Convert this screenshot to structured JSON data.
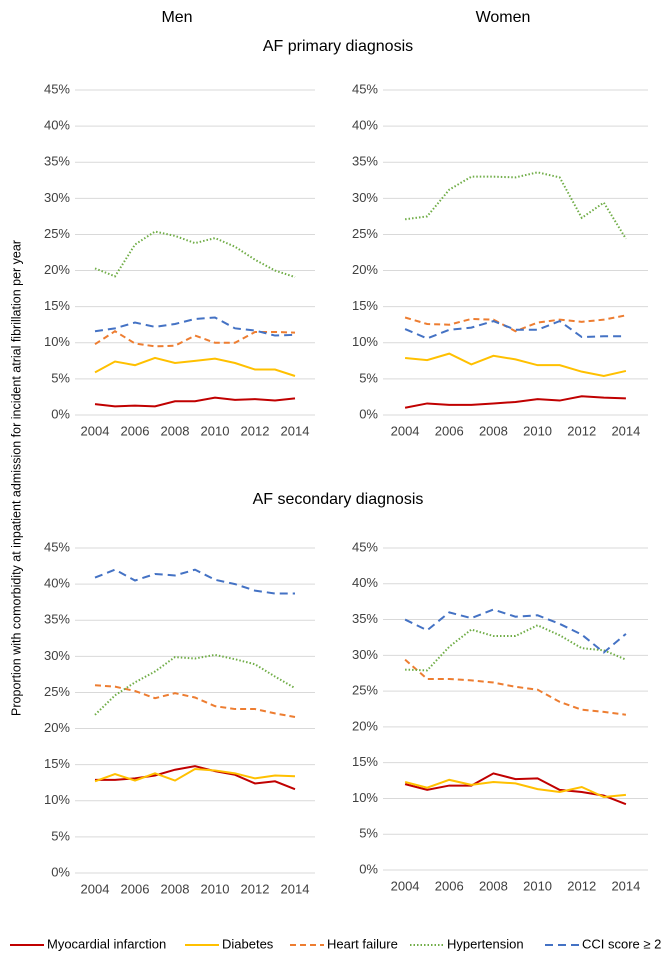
{
  "column_titles": [
    "Men",
    "Women"
  ],
  "row_titles": [
    "AF primary diagnosis",
    "AF secondary diagnosis"
  ],
  "y_label": "Proportion with comorbidity at inpatient admission for incident atrial fibrillation per year",
  "chart_data": [
    {
      "type": "line",
      "grid": true,
      "x": [
        2004,
        2005,
        2006,
        2007,
        2008,
        2009,
        2010,
        2011,
        2012,
        2013,
        2014
      ],
      "xlim": [
        2003,
        2015
      ],
      "xticks": [
        2004,
        2006,
        2008,
        2010,
        2012,
        2014
      ],
      "ylim": [
        0,
        45
      ],
      "yticks": [
        {
          "value": 0,
          "label": "0%"
        },
        {
          "value": 5,
          "label": "5%"
        },
        {
          "value": 10,
          "label": "10%"
        },
        {
          "value": 15,
          "label": "15%"
        },
        {
          "value": 20,
          "label": "20%"
        },
        {
          "value": 25,
          "label": "25%"
        },
        {
          "value": 30,
          "label": "30%"
        },
        {
          "value": 35,
          "label": "35%"
        },
        {
          "value": 40,
          "label": "40%"
        },
        {
          "value": 45,
          "label": "45%"
        }
      ],
      "series": [
        {
          "name": "Myocardial infarction",
          "color": "#c00000",
          "line_style": "solid",
          "values": [
            1.5,
            1.2,
            1.3,
            1.2,
            1.9,
            1.9,
            2.4,
            2.1,
            2.2,
            2.0,
            2.3
          ]
        },
        {
          "name": "Diabetes",
          "color": "#ffc000",
          "line_style": "solid",
          "values": [
            5.9,
            7.4,
            6.9,
            7.9,
            7.2,
            7.5,
            7.8,
            7.2,
            6.3,
            6.3,
            5.4
          ]
        },
        {
          "name": "Heart failure",
          "color": "#ed7d31",
          "line_style": "dashed",
          "values": [
            9.8,
            11.6,
            9.9,
            9.5,
            9.6,
            11.0,
            10.0,
            10.0,
            11.5,
            11.5,
            11.4
          ]
        },
        {
          "name": "Hypertension",
          "color": "#70ad47",
          "line_style": "dotted",
          "values": [
            20.3,
            19.2,
            23.6,
            25.4,
            24.8,
            23.8,
            24.5,
            23.3,
            21.5,
            20.0,
            19.1
          ]
        },
        {
          "name": "CCI score ≥ 2",
          "color": "#4472c4",
          "line_style": "long-dashed",
          "values": [
            11.6,
            12.0,
            12.8,
            12.2,
            12.6,
            13.3,
            13.5,
            12.0,
            11.7,
            11.0,
            11.1
          ]
        }
      ]
    },
    {
      "type": "line",
      "grid": true,
      "x": [
        2004,
        2005,
        2006,
        2007,
        2008,
        2009,
        2010,
        2011,
        2012,
        2013,
        2014
      ],
      "xlim": [
        2003,
        2015
      ],
      "xticks": [
        2004,
        2006,
        2008,
        2010,
        2012,
        2014
      ],
      "ylim": [
        0,
        45
      ],
      "yticks": [
        {
          "value": 0,
          "label": "0%"
        },
        {
          "value": 5,
          "label": "5%"
        },
        {
          "value": 10,
          "label": "10%"
        },
        {
          "value": 15,
          "label": "15%"
        },
        {
          "value": 20,
          "label": "20%"
        },
        {
          "value": 25,
          "label": "25%"
        },
        {
          "value": 30,
          "label": "30%"
        },
        {
          "value": 35,
          "label": "35%"
        },
        {
          "value": 40,
          "label": "40%"
        },
        {
          "value": 45,
          "label": "45%"
        }
      ],
      "series": [
        {
          "name": "Myocardial infarction",
          "color": "#c00000",
          "line_style": "solid",
          "values": [
            1.0,
            1.6,
            1.4,
            1.4,
            1.6,
            1.8,
            2.2,
            2.0,
            2.6,
            2.4,
            2.3
          ]
        },
        {
          "name": "Diabetes",
          "color": "#ffc000",
          "line_style": "solid",
          "values": [
            7.9,
            7.6,
            8.5,
            7.0,
            8.2,
            7.7,
            6.9,
            6.9,
            6.0,
            5.4,
            6.1
          ]
        },
        {
          "name": "Heart failure",
          "color": "#ed7d31",
          "line_style": "dashed",
          "values": [
            13.5,
            12.6,
            12.5,
            13.3,
            13.2,
            11.6,
            12.8,
            13.2,
            12.9,
            13.2,
            13.8
          ]
        },
        {
          "name": "Hypertension",
          "color": "#70ad47",
          "line_style": "dotted",
          "values": [
            27.1,
            27.5,
            31.2,
            33.0,
            33.0,
            32.9,
            33.6,
            32.9,
            27.3,
            29.4,
            24.4
          ]
        },
        {
          "name": "CCI score ≥ 2",
          "color": "#4472c4",
          "line_style": "long-dashed",
          "values": [
            11.9,
            10.6,
            11.8,
            12.1,
            13.0,
            11.8,
            11.8,
            13.0,
            10.8,
            10.9,
            10.9
          ]
        }
      ]
    },
    {
      "type": "line",
      "grid": true,
      "x": [
        2004,
        2005,
        2006,
        2007,
        2008,
        2009,
        2010,
        2011,
        2012,
        2013,
        2014
      ],
      "xlim": [
        2003,
        2015
      ],
      "xticks": [
        2004,
        2006,
        2008,
        2010,
        2012,
        2014
      ],
      "ylim": [
        0,
        45
      ],
      "yticks": [
        {
          "value": 0,
          "label": "0%"
        },
        {
          "value": 5,
          "label": "5%"
        },
        {
          "value": 10,
          "label": "10%"
        },
        {
          "value": 15,
          "label": "15%"
        },
        {
          "value": 20,
          "label": "20%"
        },
        {
          "value": 25,
          "label": "25%"
        },
        {
          "value": 30,
          "label": "30%"
        },
        {
          "value": 35,
          "label": "35%"
        },
        {
          "value": 40,
          "label": "40%"
        },
        {
          "value": 45,
          "label": "45%"
        }
      ],
      "series": [
        {
          "name": "Myocardial infarction",
          "color": "#c00000",
          "line_style": "solid",
          "values": [
            12.9,
            12.9,
            13.1,
            13.5,
            14.3,
            14.8,
            14.1,
            13.6,
            12.4,
            12.7,
            11.6
          ]
        },
        {
          "name": "Diabetes",
          "color": "#ffc000",
          "line_style": "solid",
          "values": [
            12.7,
            13.7,
            12.8,
            13.8,
            12.8,
            14.4,
            14.2,
            13.8,
            13.1,
            13.5,
            13.4
          ]
        },
        {
          "name": "Heart failure",
          "color": "#ed7d31",
          "line_style": "dashed",
          "values": [
            26.0,
            25.8,
            25.2,
            24.2,
            24.9,
            24.3,
            23.1,
            22.7,
            22.7,
            22.1,
            21.6
          ]
        },
        {
          "name": "Hypertension",
          "color": "#70ad47",
          "line_style": "dotted",
          "values": [
            21.9,
            24.6,
            26.4,
            27.9,
            29.9,
            29.7,
            30.2,
            29.6,
            28.9,
            27.2,
            25.6
          ]
        },
        {
          "name": "CCI score ≥ 2",
          "color": "#4472c4",
          "line_style": "long-dashed",
          "values": [
            40.9,
            42.0,
            40.5,
            41.4,
            41.2,
            42.0,
            40.6,
            40.0,
            39.1,
            38.7,
            38.7
          ]
        }
      ]
    },
    {
      "type": "line",
      "grid": true,
      "x": [
        2004,
        2005,
        2006,
        2007,
        2008,
        2009,
        2010,
        2011,
        2012,
        2013,
        2014
      ],
      "xlim": [
        2003,
        2015
      ],
      "xticks": [
        2004,
        2006,
        2008,
        2010,
        2012,
        2014
      ],
      "ylim": [
        0,
        45
      ],
      "yticks": [
        {
          "value": 0,
          "label": "0%"
        },
        {
          "value": 5,
          "label": "5%"
        },
        {
          "value": 10,
          "label": "10%"
        },
        {
          "value": 15,
          "label": "15%"
        },
        {
          "value": 20,
          "label": "20%"
        },
        {
          "value": 25,
          "label": "25%"
        },
        {
          "value": 30,
          "label": "30%"
        },
        {
          "value": 35,
          "label": "35%"
        },
        {
          "value": 40,
          "label": "40%"
        },
        {
          "value": 45,
          "label": "45%"
        }
      ],
      "series": [
        {
          "name": "Myocardial infarction",
          "color": "#c00000",
          "line_style": "solid",
          "values": [
            12.0,
            11.2,
            11.8,
            11.8,
            13.5,
            12.7,
            12.8,
            11.2,
            10.9,
            10.4,
            9.2
          ]
        },
        {
          "name": "Diabetes",
          "color": "#ffc000",
          "line_style": "solid",
          "values": [
            12.3,
            11.5,
            12.6,
            11.9,
            12.3,
            12.1,
            11.3,
            10.9,
            11.6,
            10.2,
            10.5
          ]
        },
        {
          "name": "Heart failure",
          "color": "#ed7d31",
          "line_style": "dashed",
          "values": [
            29.4,
            26.7,
            26.7,
            26.5,
            26.2,
            25.6,
            25.2,
            23.5,
            22.4,
            22.1,
            21.7
          ]
        },
        {
          "name": "Hypertension",
          "color": "#70ad47",
          "line_style": "dotted",
          "values": [
            28.0,
            27.9,
            31.2,
            33.6,
            32.7,
            32.7,
            34.2,
            32.8,
            31.0,
            30.7,
            29.4
          ]
        },
        {
          "name": "CCI score ≥ 2",
          "color": "#4472c4",
          "line_style": "long-dashed",
          "values": [
            35.0,
            33.5,
            36.0,
            35.2,
            36.4,
            35.4,
            35.6,
            34.4,
            32.9,
            30.4,
            33.0
          ]
        }
      ]
    }
  ]
}
